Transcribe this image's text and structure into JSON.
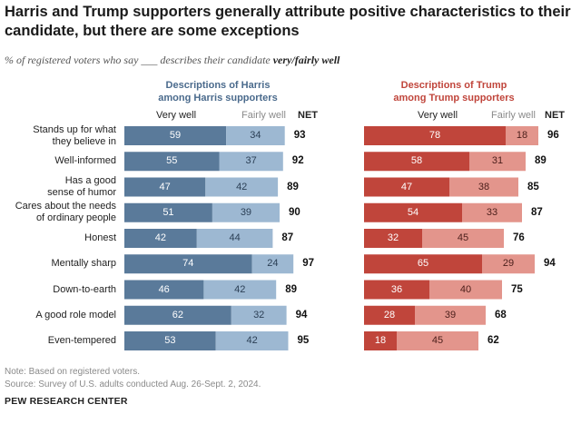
{
  "title": "Harris and Trump supporters generally attribute positive characteristics to their candidate, but there are some exceptions",
  "subtitle_pre": "% of registered voters who say ___ describes their candidate",
  "subtitle_emph": "very/fairly well",
  "panels": {
    "harris": {
      "heading_line1": "Descriptions of Harris",
      "heading_line2": "among Harris supporters"
    },
    "trump": {
      "heading_line1": "Descriptions of Trump",
      "heading_line2": "among Trump supporters"
    }
  },
  "column_labels": {
    "very_well": "Very well",
    "fairly_well": "Fairly well",
    "net": "NET"
  },
  "colors": {
    "harris_very": "#5a7a9a",
    "harris_fairly": "#9db8d2",
    "trump_very": "#c0453b",
    "trump_fairly": "#e3958c"
  },
  "chart_data": {
    "type": "bar",
    "orientation": "horizontal",
    "stacked": true,
    "title": "Harris and Trump supporters generally attribute positive characteristics to their candidate, but there are some exceptions",
    "categories": [
      [
        "Stands up for what",
        "they believe in"
      ],
      [
        "Well-informed"
      ],
      [
        "Has a good",
        "sense of humor"
      ],
      [
        "Cares about the needs",
        "of ordinary people"
      ],
      [
        "Honest"
      ],
      [
        "Mentally sharp"
      ],
      [
        "Down-to-earth"
      ],
      [
        "A good role model"
      ],
      [
        "Even-tempered"
      ]
    ],
    "harris": {
      "very_well": [
        59,
        55,
        47,
        51,
        42,
        74,
        46,
        62,
        53
      ],
      "fairly_well": [
        34,
        37,
        42,
        39,
        44,
        24,
        42,
        32,
        42
      ],
      "net": [
        93,
        92,
        89,
        90,
        87,
        97,
        89,
        94,
        95
      ]
    },
    "trump": {
      "very_well": [
        78,
        58,
        47,
        54,
        32,
        65,
        36,
        28,
        18
      ],
      "fairly_well": [
        18,
        31,
        38,
        33,
        45,
        29,
        40,
        39,
        45
      ],
      "net": [
        96,
        89,
        85,
        87,
        76,
        94,
        75,
        68,
        62
      ]
    },
    "xlim": [
      0,
      100
    ]
  },
  "notes": {
    "note": "Note: Based on registered voters.",
    "source": "Source: Survey of U.S. adults conducted Aug. 26-Sept. 2, 2024.",
    "org": "PEW RESEARCH CENTER"
  }
}
